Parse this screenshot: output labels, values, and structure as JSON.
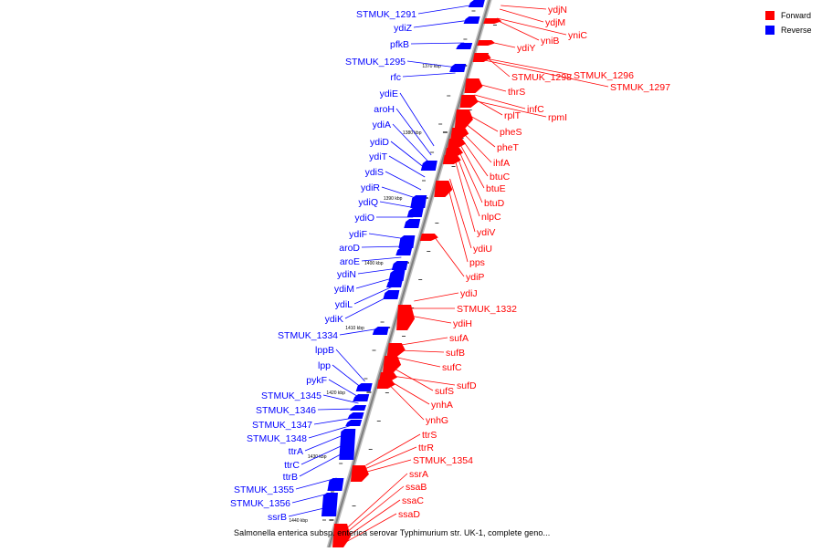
{
  "caption": "Salmonella enterica subsp. enterica serovar Typhimurium str. UK-1, complete geno...",
  "legend": [
    {
      "label": "Forward",
      "color": "#ff0000"
    },
    {
      "label": "Reverse",
      "color": "#0000ff"
    }
  ],
  "colors": {
    "forward": "#ff0000",
    "reverse": "#0000ff",
    "backbone": "#9a9a9a"
  },
  "ticks": [
    "1370 kbp",
    "1380 kbp",
    "1390 kbp",
    "1400 kbp",
    "1410 kbp",
    "1420 kbp",
    "1430 kbp",
    "1440 kbp"
  ],
  "reverse_genes": [
    "STMUK_1291",
    "ydiZ",
    "pfkB",
    "STMUK_1295",
    "rfc",
    "ydiE",
    "aroH",
    "ydiA",
    "ydiD",
    "ydiT",
    "ydiS",
    "ydiR",
    "ydiQ",
    "ydiO",
    "ydiF",
    "aroD",
    "aroE",
    "ydiN",
    "ydiM",
    "ydiL",
    "ydiK",
    "STMUK_1334",
    "lppB",
    "lpp",
    "pykF",
    "STMUK_1345",
    "STMUK_1346",
    "STMUK_1347",
    "STMUK_1348",
    "ttrA",
    "ttrC",
    "ttrB",
    "STMUK_1355",
    "STMUK_1356",
    "ssrB"
  ],
  "forward_genes": [
    "ydjN",
    "ydjM",
    "yniC",
    "yniB",
    "ydiY",
    "STMUK_1298",
    "STMUK_1296",
    "STMUK_1297",
    "thrS",
    "infC",
    "rplT",
    "rpmI",
    "pheS",
    "pheT",
    "ihfA",
    "btuC",
    "btuE",
    "btuD",
    "nlpC",
    "ydiV",
    "ydiU",
    "pps",
    "ydiP",
    "ydiJ",
    "STMUK_1332",
    "ydiH",
    "sufA",
    "sufB",
    "sufC",
    "sufS",
    "sufD",
    "ynhA",
    "ynhG",
    "ttrS",
    "ttrR",
    "STMUK_1354",
    "ssrA",
    "ssaB",
    "ssaC",
    "ssaD"
  ]
}
